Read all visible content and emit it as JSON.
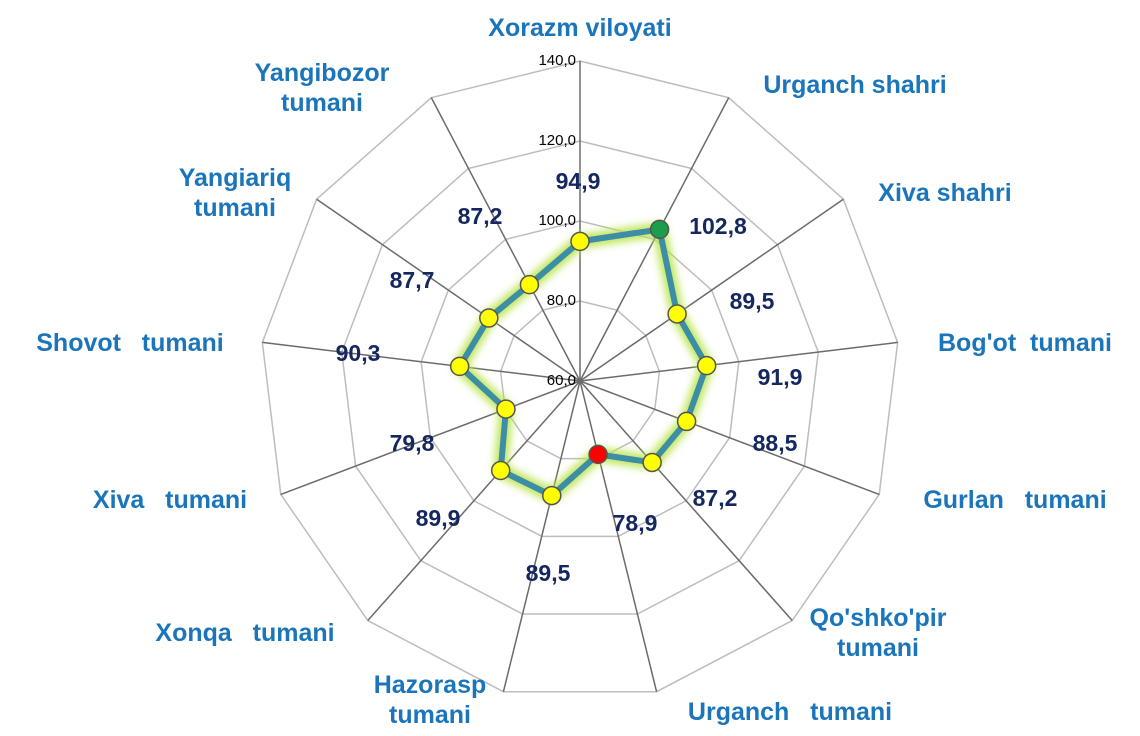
{
  "chart_data": {
    "type": "radar",
    "categories": [
      "Xorazm viloyati",
      "Urganch shahri",
      "Xiva shahri",
      "Bog'ot  tumani",
      "Gurlan   tumani",
      "Qo'shko'pir tumani",
      "Urganch   tumani",
      "Hazorasp tumani",
      "Xonqa   tumani",
      "Xiva   tumani",
      "Shovot   tumani",
      "Yangiariq tumani",
      "Yangibozor tumani"
    ],
    "series": [
      {
        "color": "#3b8ea5",
        "values": [
          94.9,
          102.8,
          89.5,
          91.9,
          88.5,
          87.2,
          78.9,
          89.5,
          89.9,
          79.8,
          90.3,
          87.7,
          87.2
        ],
        "value_labels": [
          "94,9",
          "102,8",
          "89,5",
          "91,9",
          "88,5",
          "87,2",
          "78,9",
          "89,5",
          "89,9",
          "79,8",
          "90,3",
          "87,7",
          "87,2"
        ],
        "point_colors": [
          "#ffff00",
          "#1a9e4a",
          "#ffff00",
          "#ffff00",
          "#ffff00",
          "#ffff00",
          "#ff0000",
          "#ffff00",
          "#ffff00",
          "#ffff00",
          "#ffff00",
          "#ffff00",
          "#ffff00"
        ]
      }
    ],
    "ylim": [
      60,
      140
    ],
    "yticks": [
      {
        "value": 60,
        "label": "60,0"
      },
      {
        "value": 80,
        "label": "80,0"
      },
      {
        "value": 100,
        "label": "100,0"
      },
      {
        "value": 120,
        "label": "120,0"
      },
      {
        "value": 140,
        "label": "140,0"
      }
    ],
    "grid": true
  }
}
